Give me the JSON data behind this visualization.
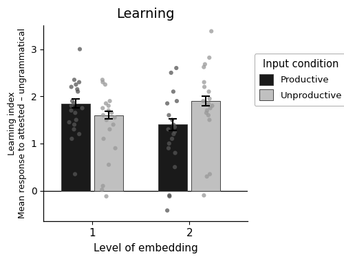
{
  "title": "Learning",
  "xlabel": "Level of embedding",
  "ylabel": "Learning index\nMean response to attested – ungrammatical",
  "bar_means": {
    "emb1_productive": 1.85,
    "emb1_unproductive": 1.6,
    "emb2_productive": 1.4,
    "emb2_unproductive": 1.9
  },
  "bar_sems": {
    "emb1_productive": 0.1,
    "emb1_unproductive": 0.08,
    "emb2_productive": 0.12,
    "emb2_unproductive": 0.1
  },
  "bar_color_productive": "#1a1a1a",
  "bar_color_unproductive": "#c0c0c0",
  "dot_color_productive": "#555555",
  "dot_color_unproductive": "#999999",
  "background_color": "#ffffff",
  "ylim": [
    -0.65,
    3.5
  ],
  "yticks": [
    0,
    1,
    2,
    3
  ],
  "xticks": [
    1,
    2
  ],
  "legend_title": "Input condition",
  "legend_labels": [
    "Productive",
    "Unproductive"
  ],
  "bar_width": 0.3,
  "group_centers": [
    1.0,
    2.0
  ],
  "bar_gap": 0.04,
  "dots_emb1_productive": [
    3.0,
    2.35,
    2.3,
    2.25,
    2.2,
    2.15,
    2.1,
    1.9,
    1.85,
    1.8,
    1.75,
    1.7,
    1.65,
    1.5,
    1.45,
    1.4,
    1.3,
    1.2,
    1.1,
    0.35
  ],
  "dots_emb1_unproductive": [
    2.35,
    2.3,
    2.25,
    1.9,
    1.85,
    1.8,
    1.75,
    1.7,
    1.65,
    1.6,
    1.55,
    1.5,
    1.4,
    1.3,
    1.1,
    0.9,
    0.55,
    0.1,
    0.02,
    -0.12
  ],
  "dots_emb2_productive": [
    2.6,
    2.5,
    2.1,
    1.9,
    1.85,
    1.6,
    1.5,
    1.4,
    1.35,
    1.3,
    1.25,
    1.2,
    1.1,
    1.0,
    0.9,
    0.8,
    0.5,
    -0.1,
    -0.42,
    -0.12
  ],
  "dots_emb2_unproductive": [
    3.38,
    2.82,
    2.68,
    2.62,
    2.3,
    2.2,
    2.1,
    1.95,
    1.9,
    1.85,
    1.8,
    1.75,
    1.7,
    1.65,
    1.6,
    1.5,
    0.35,
    0.3,
    -0.1
  ]
}
